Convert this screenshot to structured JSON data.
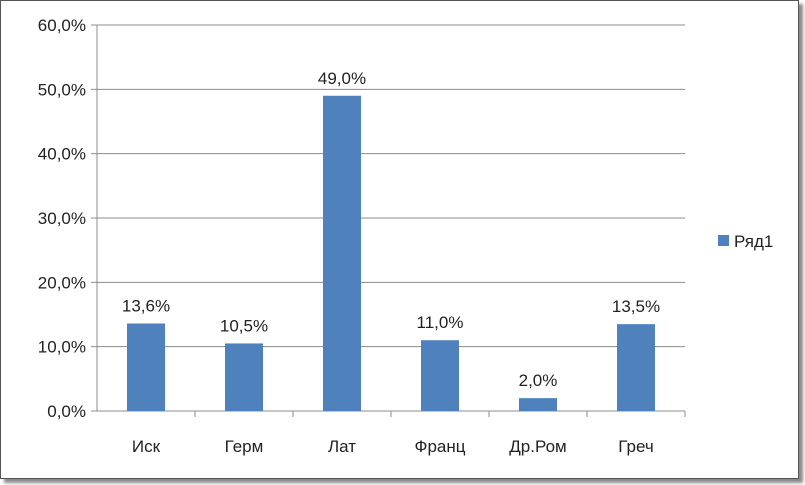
{
  "chart_data": {
    "type": "bar",
    "categories": [
      "Иск",
      "Герм",
      "Лат",
      "Франц",
      "Др.Ром",
      "Греч"
    ],
    "series": [
      {
        "name": "Ряд1",
        "values": [
          13.6,
          10.5,
          49.0,
          11.0,
          2.0,
          13.5
        ],
        "color": "#4f81bd"
      }
    ],
    "data_labels": [
      "13,6%",
      "10,5%",
      "49,0%",
      "11,0%",
      "2,0%",
      "13,5%"
    ],
    "y_ticks": [
      "0,0%",
      "10,0%",
      "20,0%",
      "30,0%",
      "40,0%",
      "50,0%",
      "60,0%"
    ],
    "ylim": [
      0,
      60
    ],
    "grid": true,
    "legend": "right"
  }
}
